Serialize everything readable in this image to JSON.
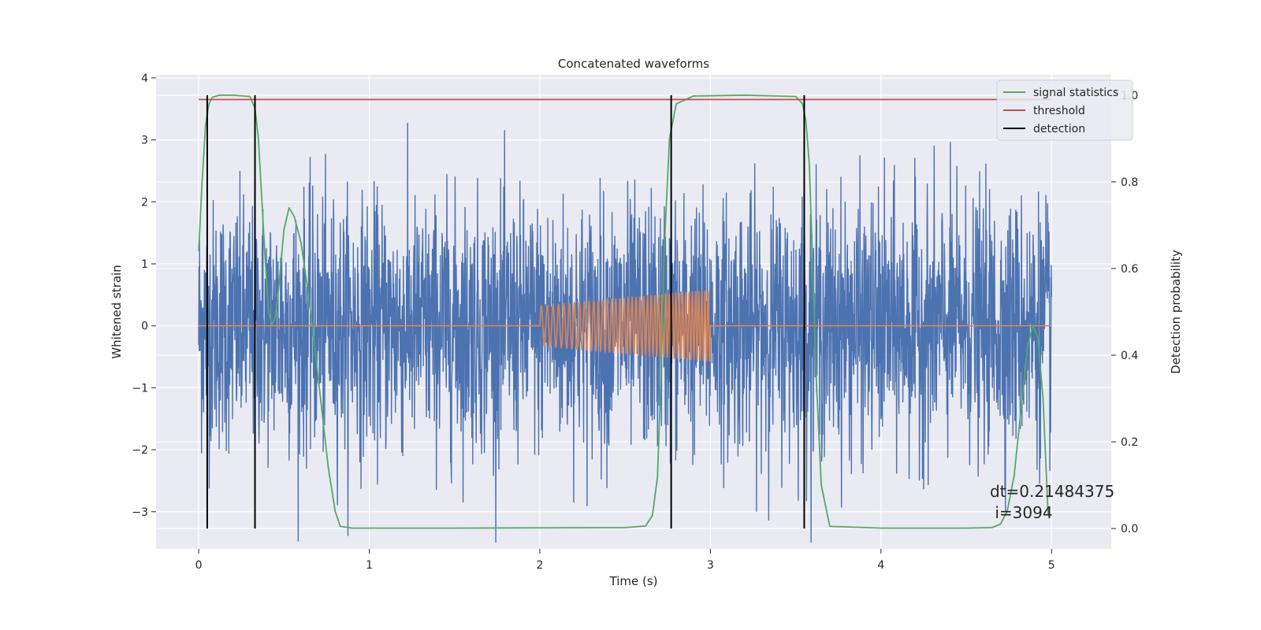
{
  "chart_data": {
    "type": "line",
    "title": "Concatenated waveforms",
    "xlabel": "Time (s)",
    "ylabel": "Whitened strain",
    "y2label": "Detection probability",
    "xlim": [
      -0.25,
      5.35
    ],
    "ylim": [
      -3.6,
      4.05
    ],
    "y2lim": [
      -0.047,
      1.047
    ],
    "xticks": [
      0,
      1,
      2,
      3,
      4,
      5
    ],
    "yticks": [
      -3,
      -2,
      -1,
      0,
      1,
      2,
      3,
      4
    ],
    "y2ticks": [
      0.0,
      0.2,
      0.4,
      0.6,
      0.8,
      1.0
    ],
    "grid": true,
    "legend_position": "top-right",
    "colors": {
      "background": "#eaeaf2",
      "grid": "#ffffff",
      "strain": "#4c72b0",
      "template": "#dd8452",
      "statistic": "#55a868",
      "threshold": "#c44e52",
      "detection": "#000000"
    },
    "series": [
      {
        "name": "",
        "axis": "left",
        "kind": "noise",
        "x_range": [
          0,
          5
        ],
        "amplitude_range": [
          -3.5,
          3.7
        ],
        "core_band": [
          -0.6,
          0.8
        ]
      },
      {
        "name": "",
        "axis": "left",
        "kind": "chirp",
        "baseline": 0,
        "x_range": [
          0,
          5
        ],
        "chirp_start": 2.0,
        "chirp_end": 3.0,
        "amplitude_start": 0.32,
        "amplitude_end": 0.58
      },
      {
        "name": "signal statistics",
        "axis": "right",
        "x": [
          0,
          0.02,
          0.04,
          0.06,
          0.08,
          0.12,
          0.2,
          0.3,
          0.33,
          0.35,
          0.37,
          0.39,
          0.41,
          0.43,
          0.45,
          0.47,
          0.5,
          0.53,
          0.56,
          0.6,
          0.64,
          0.68,
          0.72,
          0.76,
          0.8,
          0.83,
          0.9,
          1.5,
          2.5,
          2.62,
          2.66,
          2.69,
          2.71,
          2.73,
          2.76,
          2.8,
          2.9,
          3.2,
          3.5,
          3.54,
          3.56,
          3.58,
          3.6,
          3.62,
          3.65,
          3.7,
          4.0,
          4.5,
          4.65,
          4.7,
          4.74,
          4.78,
          4.82,
          4.86,
          4.89,
          4.92,
          4.95,
          4.98
        ],
        "y": [
          0.64,
          0.8,
          0.93,
          0.98,
          0.995,
          1.0,
          1.0,
          0.997,
          0.97,
          0.9,
          0.76,
          0.62,
          0.5,
          0.47,
          0.49,
          0.56,
          0.69,
          0.74,
          0.72,
          0.66,
          0.55,
          0.42,
          0.28,
          0.14,
          0.04,
          0.005,
          0.001,
          0.001,
          0.002,
          0.006,
          0.03,
          0.12,
          0.35,
          0.65,
          0.9,
          0.98,
          0.998,
          1.0,
          0.997,
          0.98,
          0.94,
          0.84,
          0.6,
          0.35,
          0.1,
          0.005,
          0.001,
          0.001,
          0.002,
          0.01,
          0.04,
          0.12,
          0.27,
          0.42,
          0.47,
          0.44,
          0.3,
          0.03
        ]
      },
      {
        "name": "threshold",
        "axis": "right",
        "x": [
          0,
          5
        ],
        "y": [
          0.99,
          0.99
        ]
      },
      {
        "name": "detection",
        "axis": "right",
        "x": [
          0.05,
          0.33,
          2.77,
          3.55
        ],
        "y_range": [
          0.0,
          1.0
        ]
      }
    ],
    "annotation": "dt=0.21484375\n i=3094",
    "legend": [
      "signal statistics",
      "threshold",
      "detection"
    ]
  }
}
